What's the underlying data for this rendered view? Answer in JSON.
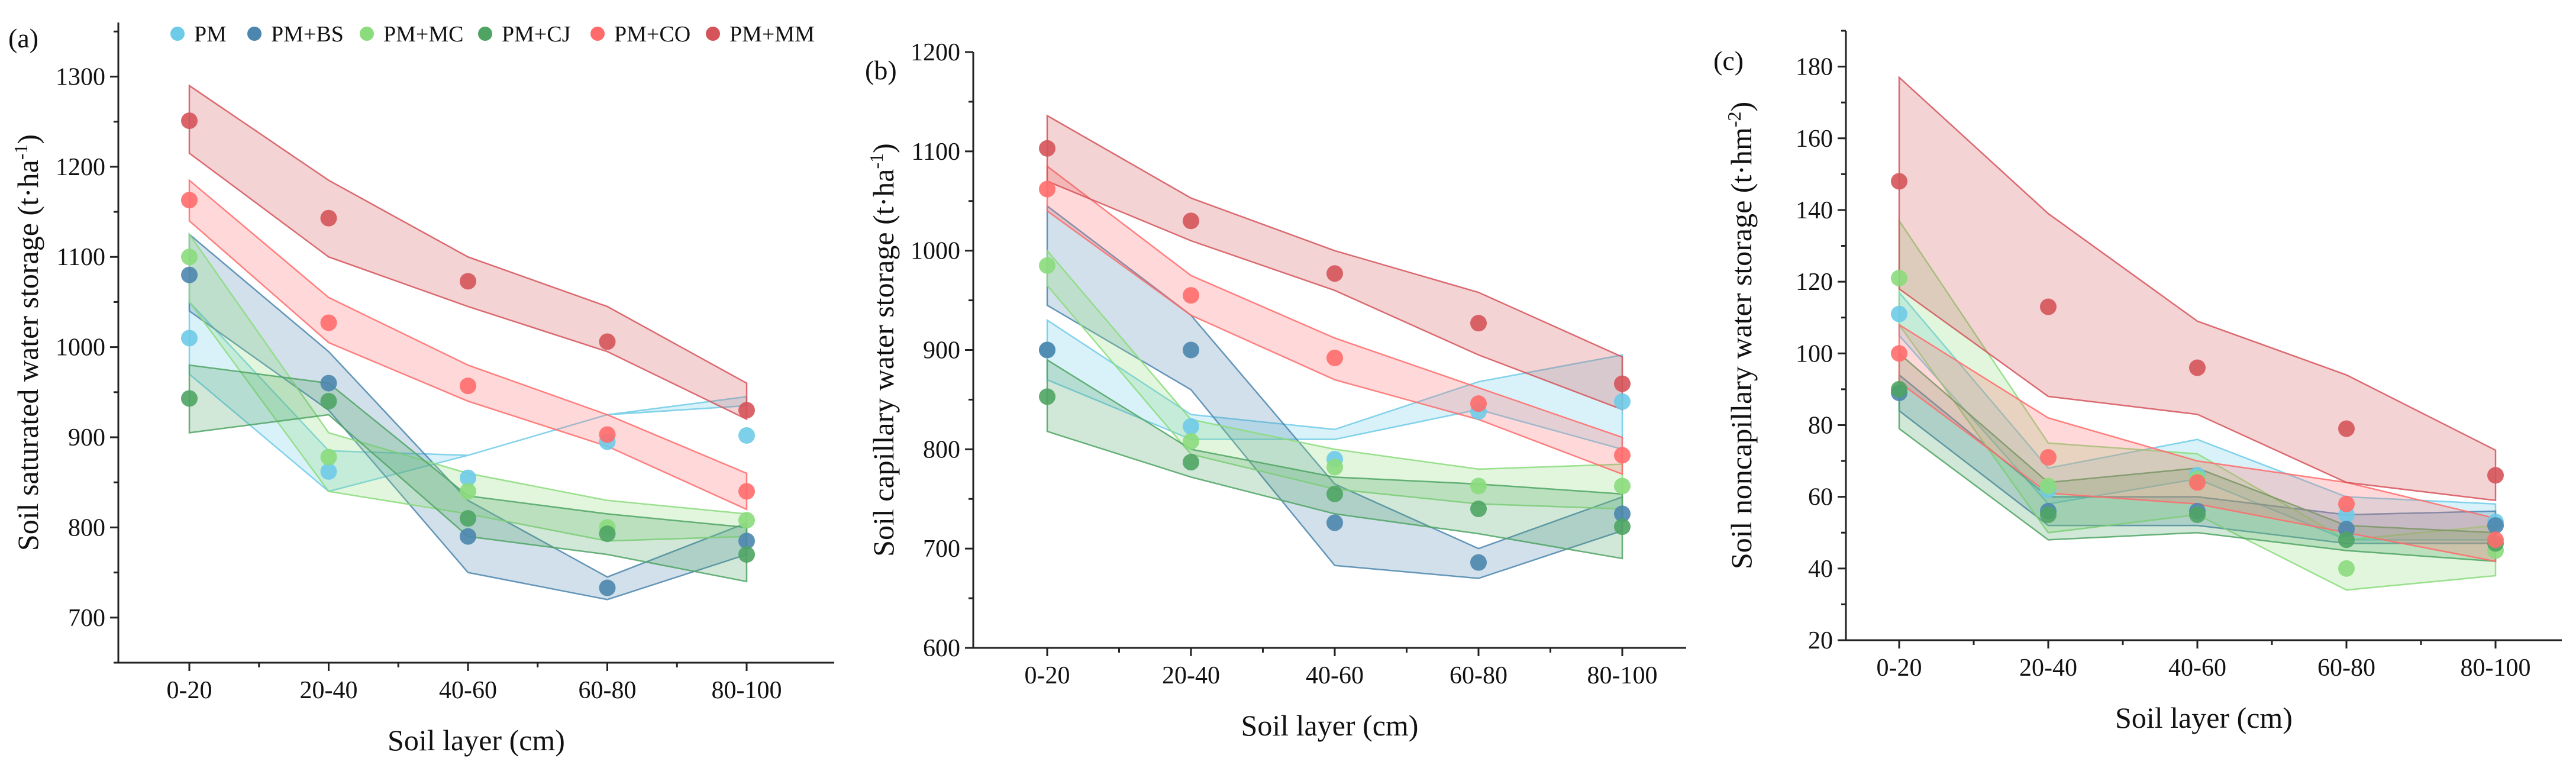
{
  "legend": [
    {
      "name": "PM",
      "color": "#6ECBE8"
    },
    {
      "name": "PM+BS",
      "color": "#4C86AE"
    },
    {
      "name": "PM+MC",
      "color": "#8BDC7C"
    },
    {
      "name": "PM+CJ",
      "color": "#4FA464"
    },
    {
      "name": "PM+CO",
      "color": "#FF6B6B"
    },
    {
      "name": "PM+MM",
      "color": "#D5545A"
    }
  ],
  "chart_data": [
    {
      "panel_label": "(a)",
      "type": "scatter",
      "xlabel": "Soil layer (cm)",
      "ylabel": "Soil saturated water storage (t·ha",
      "ylabel_sup": "-1",
      "ylabel_end": ")",
      "categories": [
        "0-20",
        "20-40",
        "40-60",
        "60-80",
        "80-100"
      ],
      "ylim": [
        650,
        1360
      ],
      "yticks": [
        700,
        800,
        900,
        1000,
        1100,
        1200,
        1300
      ],
      "series": [
        {
          "name": "PM",
          "values": [
            1010,
            862,
            855,
            895,
            902
          ],
          "lower": [
            970,
            840,
            880,
            925,
            935
          ],
          "upper": [
            1050,
            885,
            880,
            925,
            945
          ]
        },
        {
          "name": "PM+BS",
          "values": [
            1080,
            960,
            790,
            733,
            785
          ],
          "lower": [
            1040,
            930,
            750,
            720,
            770
          ],
          "upper": [
            1125,
            995,
            830,
            745,
            805
          ]
        },
        {
          "name": "PM+MC",
          "values": [
            1100,
            878,
            840,
            800,
            808
          ],
          "lower": [
            1050,
            840,
            815,
            785,
            790
          ],
          "upper": [
            1125,
            905,
            860,
            830,
            815
          ]
        },
        {
          "name": "PM+CJ",
          "values": [
            943,
            940,
            810,
            793,
            770
          ],
          "lower": [
            905,
            925,
            790,
            770,
            740
          ],
          "upper": [
            980,
            960,
            835,
            815,
            800
          ]
        },
        {
          "name": "PM+CO",
          "values": [
            1163,
            1027,
            957,
            903,
            840
          ],
          "lower": [
            1140,
            1005,
            940,
            890,
            820
          ],
          "upper": [
            1185,
            1055,
            980,
            925,
            860
          ]
        },
        {
          "name": "PM+MM",
          "values": [
            1251,
            1143,
            1073,
            1006,
            930
          ],
          "lower": [
            1215,
            1100,
            1045,
            995,
            920
          ],
          "upper": [
            1290,
            1185,
            1100,
            1045,
            960
          ]
        }
      ]
    },
    {
      "panel_label": "(b)",
      "type": "scatter",
      "xlabel": "Soil layer (cm)",
      "ylabel": "Soil capillary water storage (t·ha",
      "ylabel_sup": "-1",
      "ylabel_end": ")",
      "categories": [
        "0-20",
        "20-40",
        "40-60",
        "60-80",
        "80-100"
      ],
      "ylim": [
        600,
        1200
      ],
      "yticks": [
        600,
        700,
        800,
        900,
        1000,
        1100,
        1200
      ],
      "series": [
        {
          "name": "PM",
          "values": [
            900,
            823,
            790,
            838,
            848
          ],
          "lower": [
            870,
            810,
            810,
            840,
            800
          ],
          "upper": [
            930,
            835,
            820,
            868,
            895
          ]
        },
        {
          "name": "PM+BS",
          "values": [
            900,
            900,
            726,
            686,
            735
          ],
          "lower": [
            945,
            860,
            683,
            670,
            718
          ],
          "upper": [
            1045,
            935,
            765,
            700,
            752
          ]
        },
        {
          "name": "PM+MC",
          "values": [
            985,
            808,
            782,
            763,
            763
          ],
          "lower": [
            965,
            795,
            760,
            745,
            740
          ],
          "upper": [
            1000,
            830,
            800,
            780,
            785
          ]
        },
        {
          "name": "PM+CJ",
          "values": [
            853,
            787,
            755,
            740,
            722
          ],
          "lower": [
            818,
            772,
            735,
            715,
            690
          ],
          "upper": [
            890,
            800,
            772,
            765,
            755
          ]
        },
        {
          "name": "PM+CO",
          "values": [
            1062,
            955,
            892,
            846,
            794
          ],
          "lower": [
            1040,
            935,
            870,
            830,
            775
          ],
          "upper": [
            1085,
            975,
            912,
            862,
            812
          ]
        },
        {
          "name": "PM+MM",
          "values": [
            1103,
            1030,
            977,
            927,
            866
          ],
          "lower": [
            1070,
            1010,
            960,
            895,
            840
          ],
          "upper": [
            1136,
            1053,
            1000,
            958,
            893
          ]
        }
      ]
    },
    {
      "panel_label": "(c)",
      "type": "scatter",
      "xlabel": "Soil layer (cm)",
      "ylabel": "Soil noncapillary water storage (t·hm",
      "ylabel_sup": "-2",
      "ylabel_end": ")",
      "categories": [
        "0-20",
        "20-40",
        "40-60",
        "60-80",
        "80-100"
      ],
      "ylim": [
        20,
        190
      ],
      "yticks": [
        20,
        40,
        60,
        80,
        100,
        120,
        140,
        160,
        180
      ],
      "series": [
        {
          "name": "PM",
          "values": [
            111,
            62,
            66,
            55,
            53
          ],
          "lower": [
            105,
            58,
            65,
            48,
            48
          ],
          "upper": [
            117,
            68,
            76,
            60,
            58
          ]
        },
        {
          "name": "PM+BS",
          "values": [
            89,
            56,
            56,
            51,
            52
          ],
          "lower": [
            84,
            52,
            52,
            47,
            47
          ],
          "upper": [
            94,
            60,
            60,
            55,
            56
          ]
        },
        {
          "name": "PM+MC",
          "values": [
            121,
            63,
            65,
            40,
            45
          ],
          "lower": [
            108,
            50,
            55,
            34,
            38
          ],
          "upper": [
            137,
            75,
            72,
            48,
            52
          ]
        },
        {
          "name": "PM+CJ",
          "values": [
            90,
            55,
            55,
            48,
            47
          ],
          "lower": [
            79,
            48,
            50,
            45,
            42
          ],
          "upper": [
            100,
            64,
            68,
            52,
            50
          ]
        },
        {
          "name": "PM+CO",
          "values": [
            100,
            71,
            64,
            58,
            48
          ],
          "lower": [
            92,
            61,
            58,
            50,
            42
          ],
          "upper": [
            108,
            82,
            70,
            64,
            54
          ]
        },
        {
          "name": "PM+MM",
          "values": [
            148,
            113,
            96,
            79,
            66
          ],
          "lower": [
            118,
            88,
            83,
            64,
            59
          ],
          "upper": [
            177,
            139,
            109,
            94,
            73
          ]
        }
      ]
    }
  ]
}
